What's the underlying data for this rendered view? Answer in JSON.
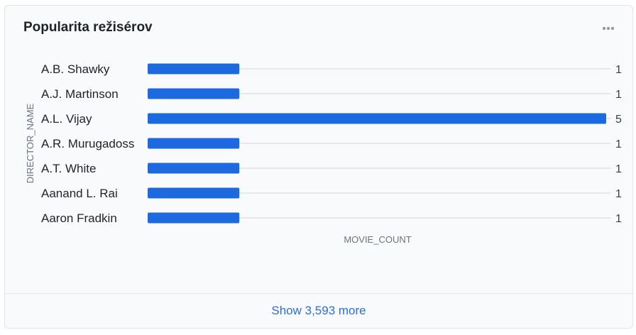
{
  "card": {
    "title": "Popularita režisérov",
    "more_icon": "ellipsis-icon",
    "show_more_label": "Show 3,593 more"
  },
  "colors": {
    "bar": "#1d6ae0",
    "grid": "#e6e8eb",
    "label": "#1f2328",
    "axis_title": "#6b7280"
  },
  "chart_data": {
    "type": "bar",
    "orientation": "horizontal",
    "categories": [
      "A.B. Shawky",
      "A.J. Martinson",
      "A.L. Vijay",
      "A.R. Murugadoss",
      "A.T. White",
      "Aanand L. Rai",
      "Aaron Fradkin"
    ],
    "values": [
      1,
      1,
      5,
      1,
      1,
      1,
      1
    ],
    "xlabel": "MOVIE_COUNT",
    "ylabel": "DIRECTOR_NAME",
    "xlim": [
      0,
      5
    ],
    "grid": true,
    "data_labels": true
  }
}
